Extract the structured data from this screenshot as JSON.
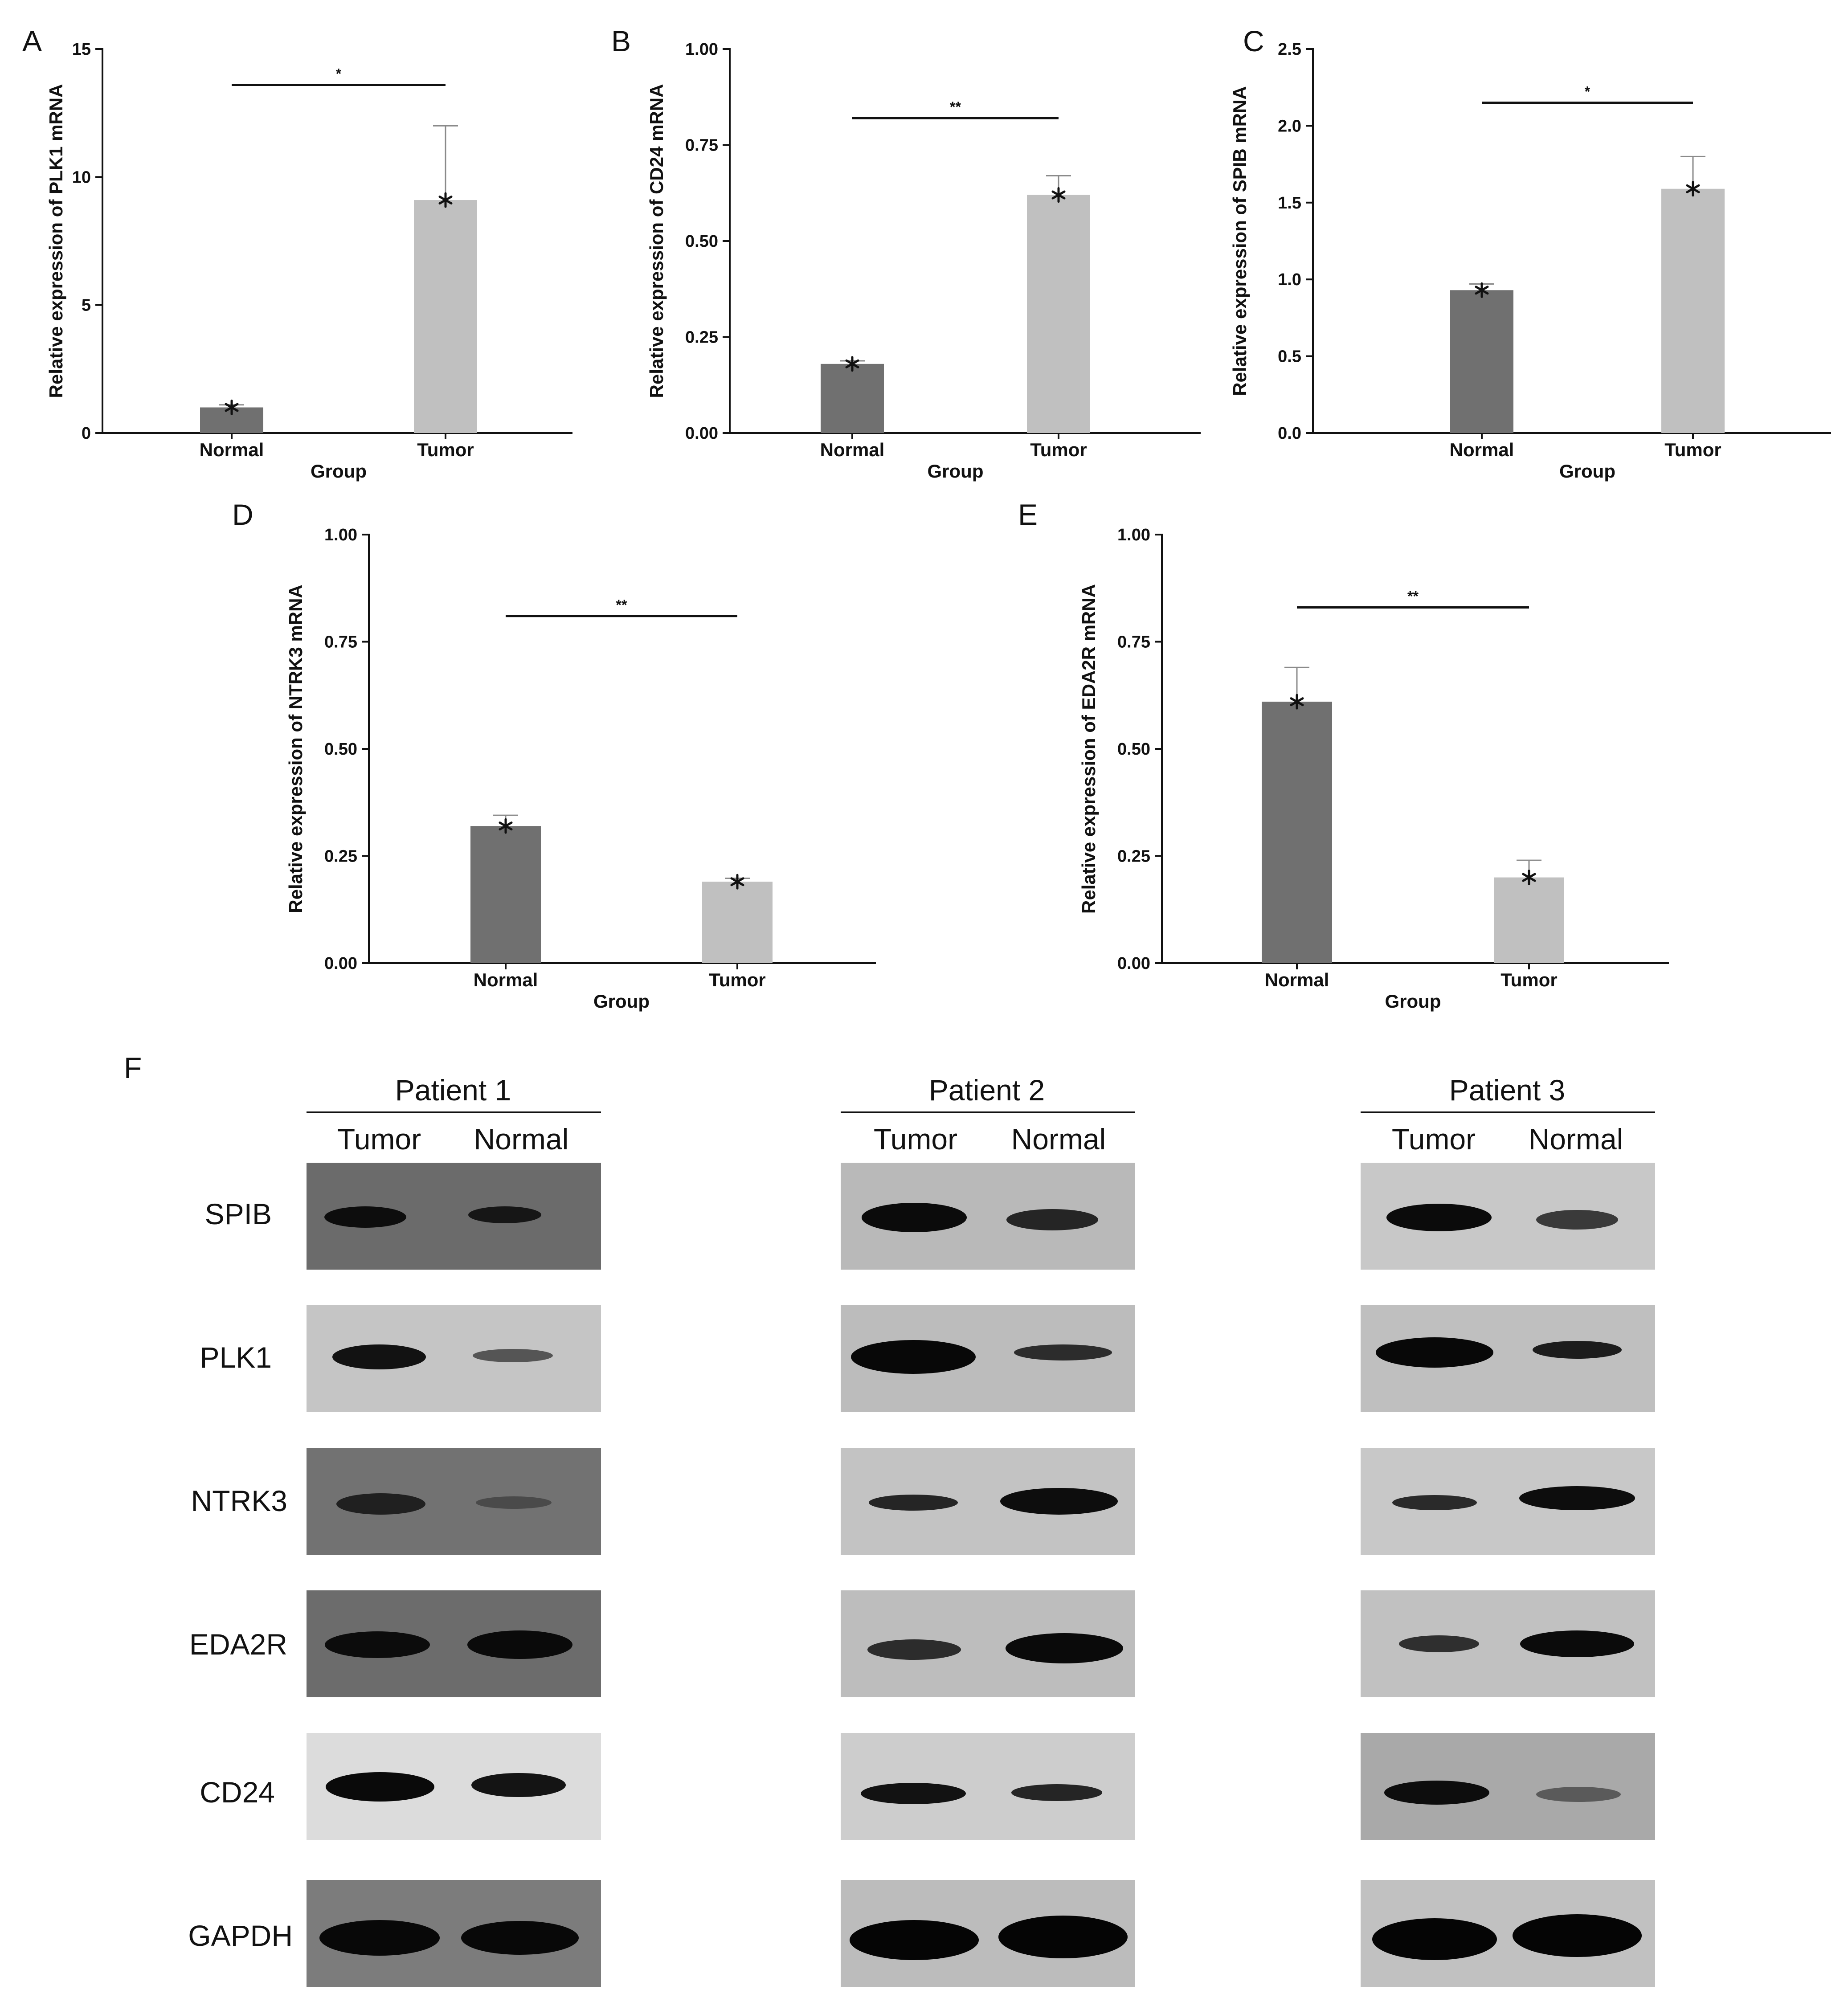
{
  "chart_data": [
    {
      "panel": "A",
      "type": "bar",
      "categories": [
        "Normal",
        "Tumor"
      ],
      "values": [
        1.0,
        9.1
      ],
      "errors": [
        0.1,
        2.9
      ],
      "ylim": [
        0,
        15
      ],
      "yticks": [
        0,
        5,
        10,
        15
      ],
      "ytick_labels": [
        "0",
        "5",
        "10",
        "15"
      ],
      "ylabel": "Relative expression of PLK1 mRNA",
      "xlabel": "Group",
      "significance": "*",
      "sig_level": 13.6,
      "colors": [
        "#707070",
        "#c0c0c0"
      ]
    },
    {
      "panel": "B",
      "type": "bar",
      "categories": [
        "Normal",
        "Tumor"
      ],
      "values": [
        0.18,
        0.62
      ],
      "errors": [
        0.008,
        0.05
      ],
      "ylim": [
        0,
        1
      ],
      "yticks": [
        0,
        0.25,
        0.5,
        0.75,
        1.0
      ],
      "ytick_labels": [
        "0.00",
        "0.25",
        "0.50",
        "0.75",
        "1.00"
      ],
      "ylabel": "Relative expression of CD24 mRNA",
      "xlabel": "Group",
      "significance": "**",
      "sig_level": 0.82,
      "colors": [
        "#707070",
        "#c0c0c0"
      ]
    },
    {
      "panel": "C",
      "type": "bar",
      "categories": [
        "Normal",
        "Tumor"
      ],
      "values": [
        0.93,
        1.59
      ],
      "errors": [
        0.04,
        0.21
      ],
      "ylim": [
        0,
        2.5
      ],
      "yticks": [
        0,
        0.5,
        1.0,
        1.5,
        2.0,
        2.5
      ],
      "ytick_labels": [
        "0.0",
        "0.5",
        "1.0",
        "1.5",
        "2.0",
        "2.5"
      ],
      "ylabel": "Relative expression of SPIB mRNA",
      "xlabel": "Group",
      "significance": "*",
      "sig_level": 2.15,
      "colors": [
        "#707070",
        "#c0c0c0"
      ]
    },
    {
      "panel": "D",
      "type": "bar",
      "categories": [
        "Normal",
        "Tumor"
      ],
      "values": [
        0.32,
        0.19
      ],
      "errors": [
        0.025,
        0.008
      ],
      "ylim": [
        0,
        1
      ],
      "yticks": [
        0,
        0.25,
        0.5,
        0.75,
        1.0
      ],
      "ytick_labels": [
        "0.00",
        "0.25",
        "0.50",
        "0.75",
        "1.00"
      ],
      "ylabel": "Relative expression of NTRK3 mRNA",
      "xlabel": "Group",
      "significance": "**",
      "sig_level": 0.81,
      "colors": [
        "#707070",
        "#c0c0c0"
      ]
    },
    {
      "panel": "E",
      "type": "bar",
      "categories": [
        "Normal",
        "Tumor"
      ],
      "values": [
        0.61,
        0.2
      ],
      "errors": [
        0.08,
        0.04
      ],
      "ylim": [
        0,
        1
      ],
      "yticks": [
        0,
        0.25,
        0.5,
        0.75,
        1.0
      ],
      "ytick_labels": [
        "0.00",
        "0.25",
        "0.50",
        "0.75",
        "1.00"
      ],
      "ylabel": "Relative expression of EDA2R mRNA",
      "xlabel": "Group",
      "significance": "**",
      "sig_level": 0.83,
      "colors": [
        "#707070",
        "#c0c0c0"
      ]
    }
  ],
  "western_blot": {
    "panel": "F",
    "patients": [
      "Patient 1",
      "Patient 2",
      "Patient 3"
    ],
    "lanes": [
      "Tumor",
      "Normal"
    ],
    "proteins": [
      "SPIB",
      "PLK1",
      "NTRK3",
      "EDA2R",
      "CD24",
      "GAPDH"
    ]
  }
}
